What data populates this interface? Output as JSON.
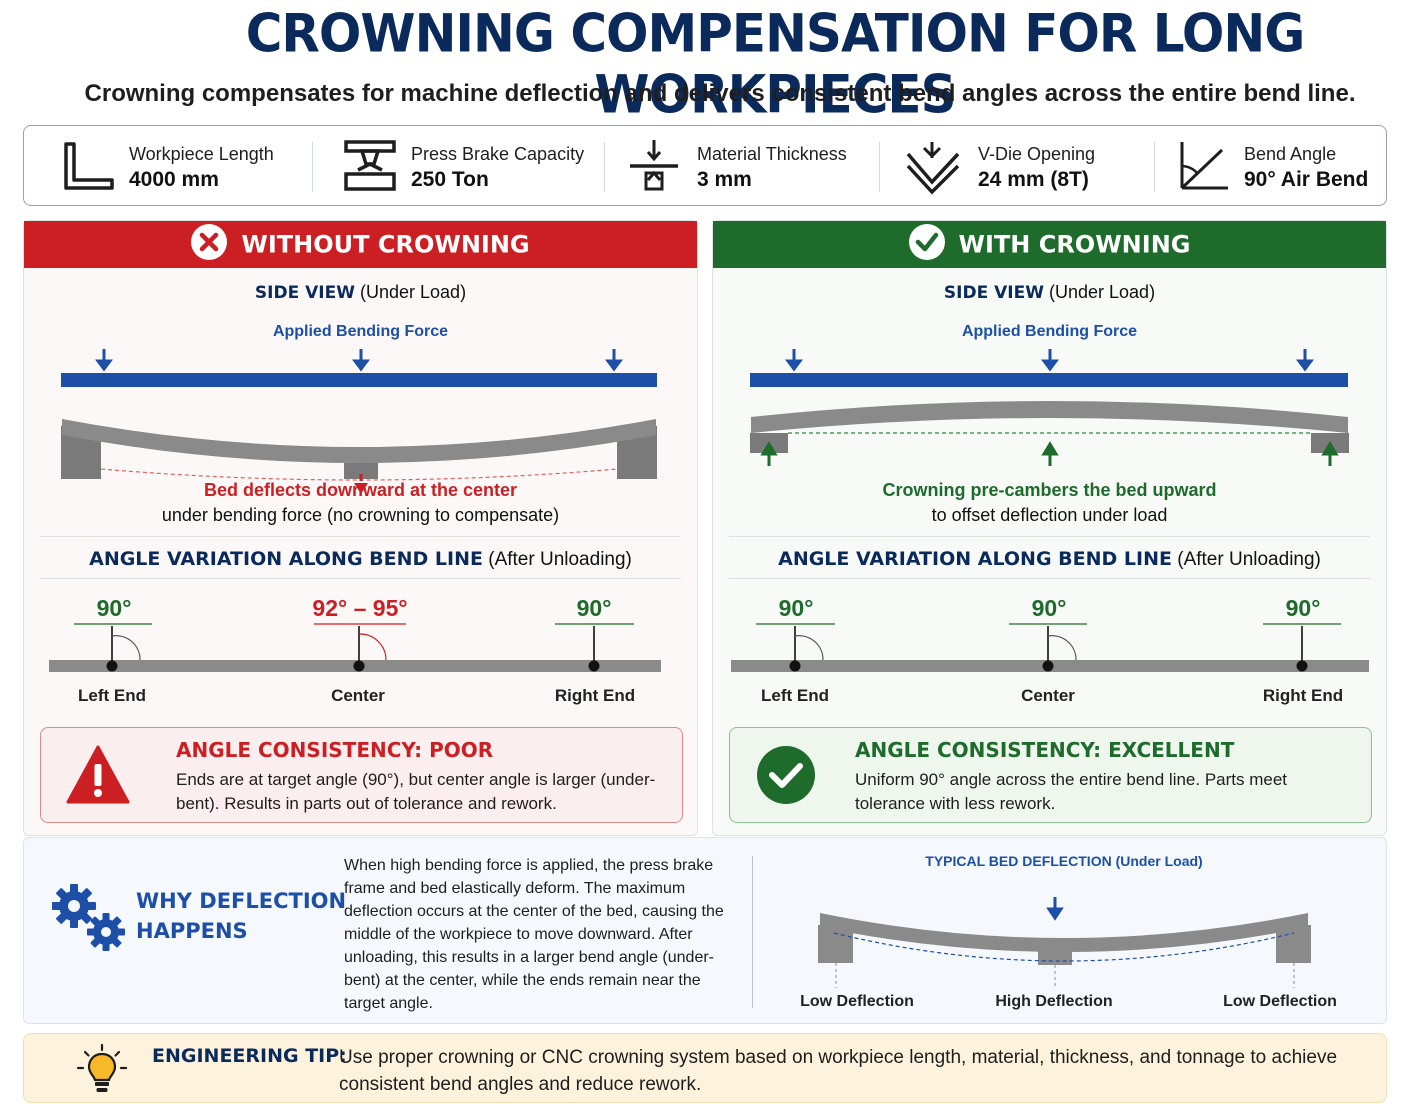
{
  "header": {
    "title": "CROWNING COMPENSATION FOR LONG WORKPIECES",
    "subtitle": "Crowning compensates for machine deflection and delivers consistent bend angles across the entire bend line."
  },
  "params": [
    {
      "icon": "l-profile-icon",
      "label": "Workpiece Length",
      "value": "4000 mm"
    },
    {
      "icon": "press-brake-icon",
      "label": "Press Brake Capacity",
      "value": "250 Ton"
    },
    {
      "icon": "thickness-icon",
      "label": "Material Thickness",
      "value": "3 mm"
    },
    {
      "icon": "v-die-icon",
      "label": "V-Die Opening",
      "value": "24 mm (8T)"
    },
    {
      "icon": "angle-icon",
      "label": "Bend Angle",
      "value": "90° Air Bend"
    }
  ],
  "without": {
    "header": "WITHOUT CROWNING",
    "side_view_bold": "SIDE VIEW",
    "side_view_rest": "(Under Load)",
    "force_label": "Applied Bending Force",
    "caption_bold": "Bed deflects downward at the center",
    "caption": "under bending force (no crowning to compensate)",
    "angle_title_bold": "ANGLE VARIATION ALONG BEND LINE",
    "angle_title_rest": "(After Unloading)",
    "points": [
      {
        "angle": "90°",
        "label": "Left End"
      },
      {
        "angle": "92° – 95°",
        "label": "Center"
      },
      {
        "angle": "90°",
        "label": "Right End"
      }
    ],
    "result_title": "ANGLE CONSISTENCY: POOR",
    "result_desc": "Ends are at target angle (90°), but center angle is larger (under-bent). Results in parts out of tolerance and rework.",
    "colors": {
      "accent": "#cc1f24"
    }
  },
  "with": {
    "header": "WITH CROWNING",
    "side_view_bold": "SIDE VIEW",
    "side_view_rest": "(Under Load)",
    "force_label": "Applied Bending Force",
    "caption_bold": "Crowning pre-cambers the bed upward",
    "caption": "to offset deflection under load",
    "angle_title_bold": "ANGLE VARIATION ALONG BEND LINE",
    "angle_title_rest": "(After Unloading)",
    "points": [
      {
        "angle": "90°",
        "label": "Left End"
      },
      {
        "angle": "90°",
        "label": "Center"
      },
      {
        "angle": "90°",
        "label": "Right End"
      }
    ],
    "result_title": "ANGLE CONSISTENCY: EXCELLENT",
    "result_desc": "Uniform 90° angle across the entire bend line. Parts meet tolerance with less rework.",
    "colors": {
      "accent": "#1e6b2c"
    }
  },
  "why": {
    "title_line1": "WHY DEFLECTION",
    "title_line2": "HAPPENS",
    "description": "When high bending force is applied, the press brake frame and bed elastically deform. The maximum deflection occurs at the center of the bed, causing the middle of the workpiece to move downward. After unloading, this results in a larger bend angle (under-bent) at the center, while the ends remain near the target angle.",
    "diagram_title": "TYPICAL BED DEFLECTION (Under Load)",
    "labels": [
      "Low Deflection",
      "High Deflection",
      "Low Deflection"
    ]
  },
  "tip": {
    "label": "ENGINEERING TIP:",
    "text": "Use proper crowning or CNC crowning system based on workpiece length, material, thickness, and tonnage to achieve consistent bend angles and reduce rework."
  }
}
